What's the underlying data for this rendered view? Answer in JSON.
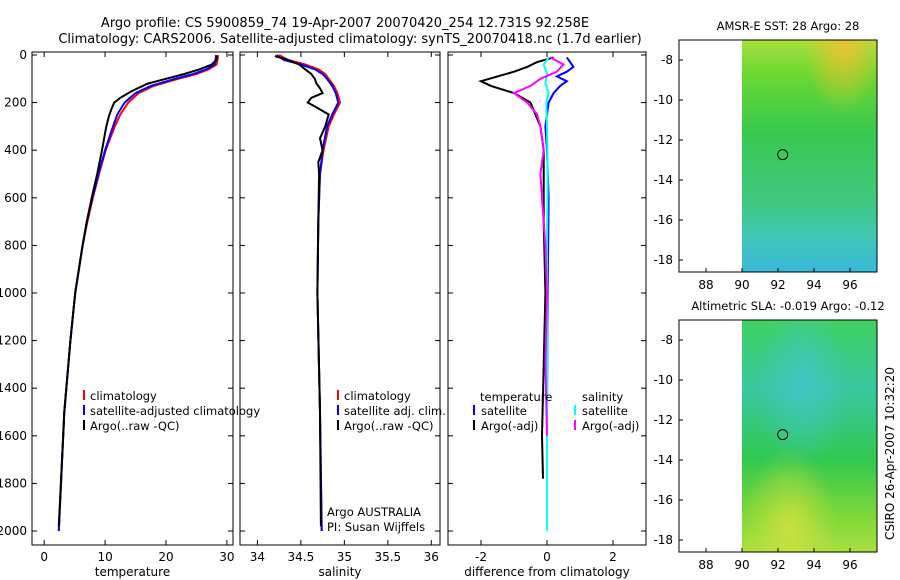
{
  "header": {
    "title_line1": "Argo profile: CS 5900859_74 19-Apr-2007 20070420_254 12.731S 92.258E",
    "title_line2": "Climatology: CARS2006. Satellite-adjusted climatology: synTS_20070418.nc (1.7d earlier)"
  },
  "side_label": "CSIRO 26-Apr-2007 10:32:20",
  "colors": {
    "red": "#ff0000",
    "blue": "#0000ff",
    "black": "#000000",
    "cyan": "#00ffff",
    "magenta": "#ff00ff"
  },
  "chart_data": [
    {
      "type": "line",
      "id": "temperature",
      "xlabel": "temperature",
      "ylabel": "",
      "xlim": [
        -2,
        31
      ],
      "ylim": [
        0,
        2050
      ],
      "y_reversed": true,
      "xticks": [
        0,
        10,
        20,
        30
      ],
      "xtick_labels": [
        "0",
        "10",
        "20",
        "30"
      ],
      "yticks": [
        0,
        200,
        400,
        600,
        800,
        1000,
        1200,
        1400,
        1600,
        1800,
        2000
      ],
      "ytick_labels": [
        "0",
        "200",
        "400",
        "600",
        "800",
        "1000",
        "1200",
        "1400",
        "1600",
        "1800",
        "2000"
      ],
      "legend": [
        "climatology",
        "satellite-adjusted climatology",
        "Argo(..raw -QC)"
      ],
      "series": [
        {
          "name": "climatology",
          "color": "#ff0000",
          "depth": [
            0,
            10,
            40,
            60,
            80,
            100,
            130,
            160,
            200,
            250,
            300,
            400,
            500,
            600,
            700,
            800,
            1000,
            1200,
            1500,
            2000
          ],
          "values": [
            28.5,
            28.5,
            28.3,
            27.0,
            25.0,
            22.0,
            18.0,
            15.5,
            13.8,
            12.5,
            11.6,
            10.1,
            9.0,
            8.0,
            7.1,
            6.3,
            5.1,
            4.3,
            3.3,
            2.4
          ]
        },
        {
          "name": "satellite-adjusted climatology",
          "color": "#0000ff",
          "depth": [
            0,
            10,
            40,
            60,
            80,
            100,
            130,
            160,
            200,
            250,
            300,
            400,
            500,
            600,
            700,
            800,
            1000,
            1200,
            1500,
            2000
          ],
          "values": [
            28.2,
            28.2,
            28.0,
            26.6,
            24.5,
            21.5,
            17.5,
            15.0,
            13.2,
            12.0,
            11.3,
            10.0,
            8.9,
            7.9,
            7.0,
            6.3,
            5.1,
            4.3,
            3.3,
            2.4
          ]
        },
        {
          "name": "Argo(..raw -QC)",
          "color": "#000000",
          "depth": [
            5,
            20,
            40,
            60,
            80,
            100,
            120,
            150,
            180,
            200,
            230,
            260,
            300,
            400,
            500,
            600,
            700,
            800,
            1000,
            1200,
            1500,
            1980
          ],
          "values": [
            28.4,
            28.3,
            27.5,
            25.5,
            23.0,
            20.0,
            17.0,
            14.5,
            12.5,
            11.5,
            11.0,
            10.6,
            10.2,
            9.5,
            8.7,
            7.8,
            7.0,
            6.3,
            5.1,
            4.3,
            3.3,
            2.4
          ]
        }
      ]
    },
    {
      "type": "line",
      "id": "salinity",
      "xlabel": "salinity",
      "xlim": [
        33.8,
        36.1
      ],
      "ylim": [
        0,
        2050
      ],
      "y_reversed": true,
      "xticks": [
        34,
        34.5,
        35,
        35.5,
        36
      ],
      "xtick_labels": [
        "34",
        "34.5",
        "35",
        "35.5",
        "36"
      ],
      "legend": [
        "climatology",
        "satellite adj. clim.",
        "Argo(..raw -QC)"
      ],
      "annotation": [
        "Argo AUSTRALIA",
        "PI: Susan Wijffels"
      ],
      "series": [
        {
          "name": "climatology",
          "color": "#ff0000",
          "depth": [
            0,
            20,
            40,
            60,
            80,
            100,
            130,
            160,
            200,
            250,
            300,
            400,
            500,
            700,
            1000,
            1500,
            2000
          ],
          "values": [
            34.25,
            34.35,
            34.55,
            34.7,
            34.78,
            34.82,
            34.88,
            34.92,
            34.95,
            34.88,
            34.82,
            34.76,
            34.72,
            34.7,
            34.69,
            34.72,
            34.74
          ]
        },
        {
          "name": "satellite adj. clim.",
          "color": "#0000ff",
          "depth": [
            0,
            20,
            40,
            60,
            80,
            100,
            130,
            160,
            200,
            250,
            300,
            400,
            500,
            700,
            1000,
            1500,
            2000
          ],
          "values": [
            34.22,
            34.3,
            34.5,
            34.66,
            34.75,
            34.8,
            34.86,
            34.9,
            34.93,
            34.86,
            34.8,
            34.75,
            34.72,
            34.7,
            34.69,
            34.72,
            34.74
          ]
        },
        {
          "name": "Argo(..raw -QC)",
          "color": "#000000",
          "depth": [
            5,
            20,
            40,
            60,
            80,
            100,
            120,
            140,
            160,
            180,
            200,
            220,
            250,
            300,
            350,
            400,
            450,
            500,
            700,
            1000,
            1500,
            1980
          ],
          "values": [
            34.2,
            34.35,
            34.48,
            34.55,
            34.62,
            34.66,
            34.68,
            34.72,
            34.75,
            34.62,
            34.58,
            34.68,
            34.82,
            34.78,
            34.72,
            34.75,
            34.7,
            34.71,
            34.7,
            34.69,
            34.72,
            34.73
          ]
        }
      ]
    },
    {
      "type": "line",
      "id": "difference",
      "xlabel": "difference from climatology",
      "xlim": [
        -3.0,
        3.0
      ],
      "ylim": [
        0,
        2050
      ],
      "y_reversed": true,
      "xticks": [
        -2,
        0,
        2
      ],
      "xtick_labels": [
        "-2",
        "0",
        "2"
      ],
      "legend_left": [
        "temperature",
        "satellite",
        "Argo(-adj)"
      ],
      "legend_right": [
        "salinity",
        "satellite",
        "Argo(-adj)"
      ],
      "series": [
        {
          "name": "temperature satellite",
          "color": "#0000ff",
          "depth": [
            10,
            30,
            50,
            70,
            90,
            110,
            130,
            160,
            200,
            300,
            400,
            600,
            1000,
            1500,
            2000
          ],
          "values": [
            0.6,
            0.7,
            0.8,
            0.6,
            0.3,
            0.6,
            0.4,
            0.2,
            0.05,
            -0.05,
            0.0,
            0.05,
            0.02,
            0.0,
            0.0
          ]
        },
        {
          "name": "temperature Argo(-adj)",
          "color": "#000000",
          "depth": [
            10,
            30,
            50,
            70,
            90,
            110,
            130,
            160,
            200,
            300,
            400,
            500,
            700,
            1000,
            1300,
            1600,
            1780
          ],
          "values": [
            0.2,
            -0.3,
            -0.6,
            -1.0,
            -1.5,
            -2.0,
            -1.7,
            -1.0,
            -0.5,
            -0.2,
            -0.1,
            -0.1,
            -0.1,
            -0.05,
            -0.1,
            -0.15,
            -0.12
          ]
        },
        {
          "name": "salinity satellite",
          "color": "#00ffff",
          "depth": [
            10,
            40,
            80,
            120,
            160,
            200,
            300,
            500,
            800,
            1200,
            1600,
            2000
          ],
          "values": [
            0.05,
            -0.1,
            0.0,
            -0.05,
            0.05,
            -0.02,
            0.0,
            0.02,
            0.0,
            0.01,
            0.0,
            0.0
          ]
        },
        {
          "name": "salinity Argo(-adj)",
          "color": "#ff00ff",
          "depth": [
            10,
            40,
            70,
            100,
            130,
            160,
            200,
            250,
            300,
            400,
            500,
            600,
            800,
            1000,
            1300,
            1600
          ],
          "values": [
            0.1,
            0.5,
            0.3,
            -0.2,
            -0.5,
            -1.0,
            -0.6,
            -0.3,
            -0.2,
            -0.1,
            -0.2,
            -0.15,
            -0.05,
            0.0,
            -0.05,
            0.0
          ]
        }
      ]
    },
    {
      "type": "heatmap",
      "id": "sst-map",
      "title": "AMSR-E SST: 28 Argo: 28",
      "xlim": [
        86.5,
        97.5
      ],
      "ylim": [
        -18.6,
        -7.0
      ],
      "data_xlim": [
        90,
        97.5
      ],
      "xticks": [
        88,
        90,
        92,
        94,
        96
      ],
      "xtick_labels": [
        "88",
        "90",
        "92",
        "94",
        "96"
      ],
      "yticks": [
        -8,
        -10,
        -12,
        -14,
        -16,
        -18
      ],
      "ytick_labels": [
        "-8",
        "-10",
        "-12",
        "-14",
        "-16",
        "-18"
      ],
      "profile_marker": [
        92.26,
        -12.73
      ]
    },
    {
      "type": "heatmap",
      "id": "sla-map",
      "title": "Altimetric SLA: -0.019 Argo: -0.12",
      "xlim": [
        86.5,
        97.5
      ],
      "ylim": [
        -18.6,
        -7.0
      ],
      "data_xlim": [
        90,
        97.5
      ],
      "xticks": [
        88,
        90,
        92,
        94,
        96
      ],
      "xtick_labels": [
        "88",
        "90",
        "92",
        "94",
        "96"
      ],
      "yticks": [
        -8,
        -10,
        -12,
        -14,
        -16,
        -18
      ],
      "ytick_labels": [
        "-8",
        "-10",
        "-12",
        "-14",
        "-16",
        "-18"
      ],
      "profile_marker": [
        92.26,
        -12.73
      ]
    }
  ]
}
